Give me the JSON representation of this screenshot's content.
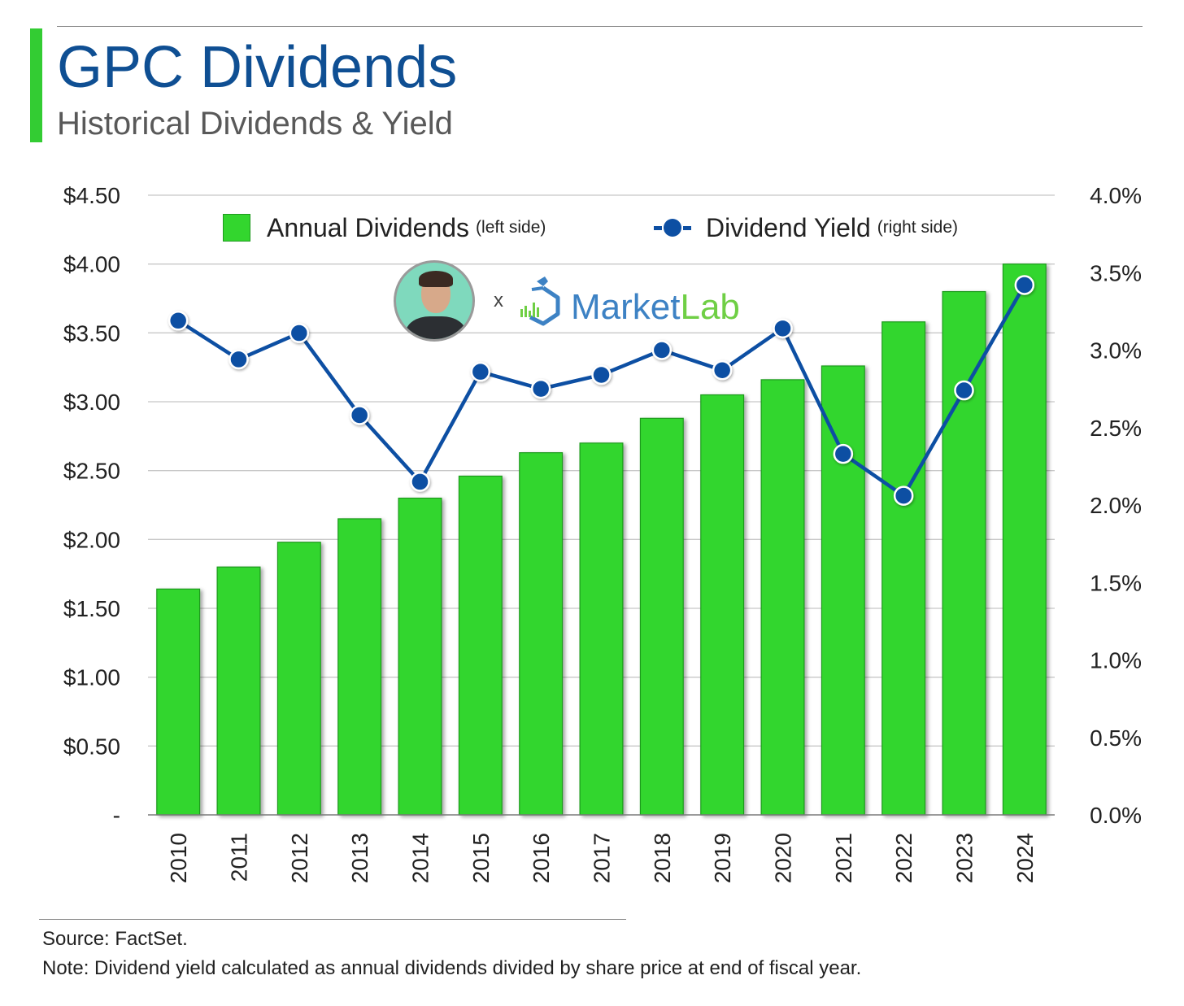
{
  "header": {
    "title": "GPC Dividends",
    "subtitle": "Historical Dividends & Yield"
  },
  "colors": {
    "accent_bar": "#33cc33",
    "bar_fill": "#33d62e",
    "bar_border": "#1f9a1f",
    "line": "#0d4fa3",
    "title": "#0f4f93",
    "gridline": "#c8c8c8"
  },
  "legend": {
    "placement": "top-center",
    "dividends_label": "Annual Dividends",
    "dividends_note": "(left side)",
    "yield_label": "Dividend Yield",
    "yield_note": "(right side)"
  },
  "branding": {
    "separator": "x",
    "logo_market": "Market",
    "logo_lab": "Lab",
    "avatar_icon": "person-avatar-photo",
    "logo_icon": "microscope-chart-icon"
  },
  "chart_data": {
    "type": "bar",
    "categories": [
      "2010",
      "2011",
      "2012",
      "2013",
      "2014",
      "2015",
      "2016",
      "2017",
      "2018",
      "2019",
      "2020",
      "2021",
      "2022",
      "2023",
      "2024"
    ],
    "series": [
      {
        "name": "Annual Dividends",
        "type": "bar",
        "axis": "left",
        "values": [
          1.64,
          1.8,
          1.98,
          2.15,
          2.3,
          2.46,
          2.63,
          2.7,
          2.88,
          3.05,
          3.16,
          3.26,
          3.58,
          3.8,
          4.0
        ]
      },
      {
        "name": "Dividend Yield",
        "type": "line",
        "axis": "right",
        "values": [
          3.19,
          2.94,
          3.11,
          2.58,
          2.15,
          2.86,
          2.75,
          2.84,
          3.0,
          2.87,
          3.14,
          2.33,
          2.06,
          2.74,
          3.42
        ]
      }
    ],
    "y_left": {
      "ylim": [
        0,
        4.5
      ],
      "ticks": [
        0,
        0.5,
        1,
        1.5,
        2,
        2.5,
        3,
        3.5,
        4,
        4.5
      ],
      "tick_labels": [
        "-",
        "$0.50",
        "$1.00",
        "$1.50",
        "$2.00",
        "$2.50",
        "$3.00",
        "$3.50",
        "$4.00",
        "$4.50"
      ]
    },
    "y_right": {
      "ylim": [
        0,
        4.0
      ],
      "ticks": [
        0,
        0.5,
        1,
        1.5,
        2,
        2.5,
        3,
        3.5,
        4
      ],
      "tick_labels": [
        "0.0%",
        "0.5%",
        "1.0%",
        "1.5%",
        "2.0%",
        "2.5%",
        "3.0%",
        "3.5%",
        "4.0%"
      ]
    },
    "grid": true
  },
  "footer": {
    "source": "Source: FactSet.",
    "note": "Note: Dividend yield calculated as annual dividends divided by share price at end of fiscal year."
  }
}
